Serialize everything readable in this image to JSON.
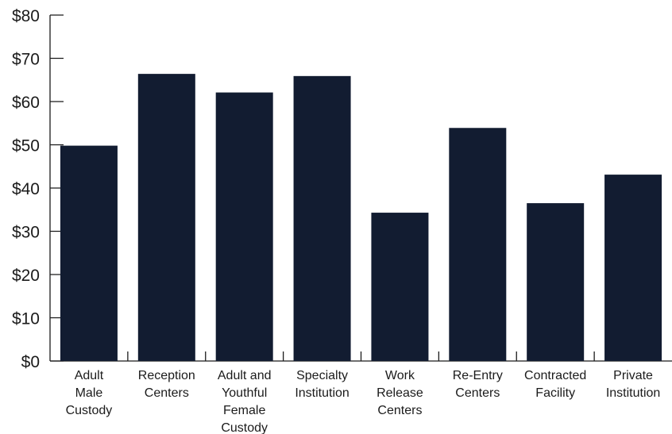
{
  "chart_data": {
    "type": "bar",
    "categories": [
      [
        "Adult",
        "Male",
        "Custody"
      ],
      [
        "Reception",
        "Centers"
      ],
      [
        "Adult and",
        "Youthful",
        "Female",
        "Custody"
      ],
      [
        "Specialty",
        "Institution"
      ],
      [
        "Work",
        "Release",
        "Centers"
      ],
      [
        "Re-Entry",
        "Centers"
      ],
      [
        "Contracted",
        "Facility"
      ],
      [
        "Private",
        "Institution"
      ]
    ],
    "values": [
      49.8,
      66.4,
      62.1,
      65.9,
      34.3,
      53.9,
      36.5,
      43.1
    ],
    "ylim": [
      0,
      80
    ],
    "yticks": [
      "$0",
      "$10",
      "$20",
      "$30",
      "$40",
      "$50",
      "$60",
      "$70",
      "$80"
    ],
    "bar_color": "#121c31",
    "grid": false,
    "title": "",
    "xlabel": "",
    "ylabel": ""
  }
}
